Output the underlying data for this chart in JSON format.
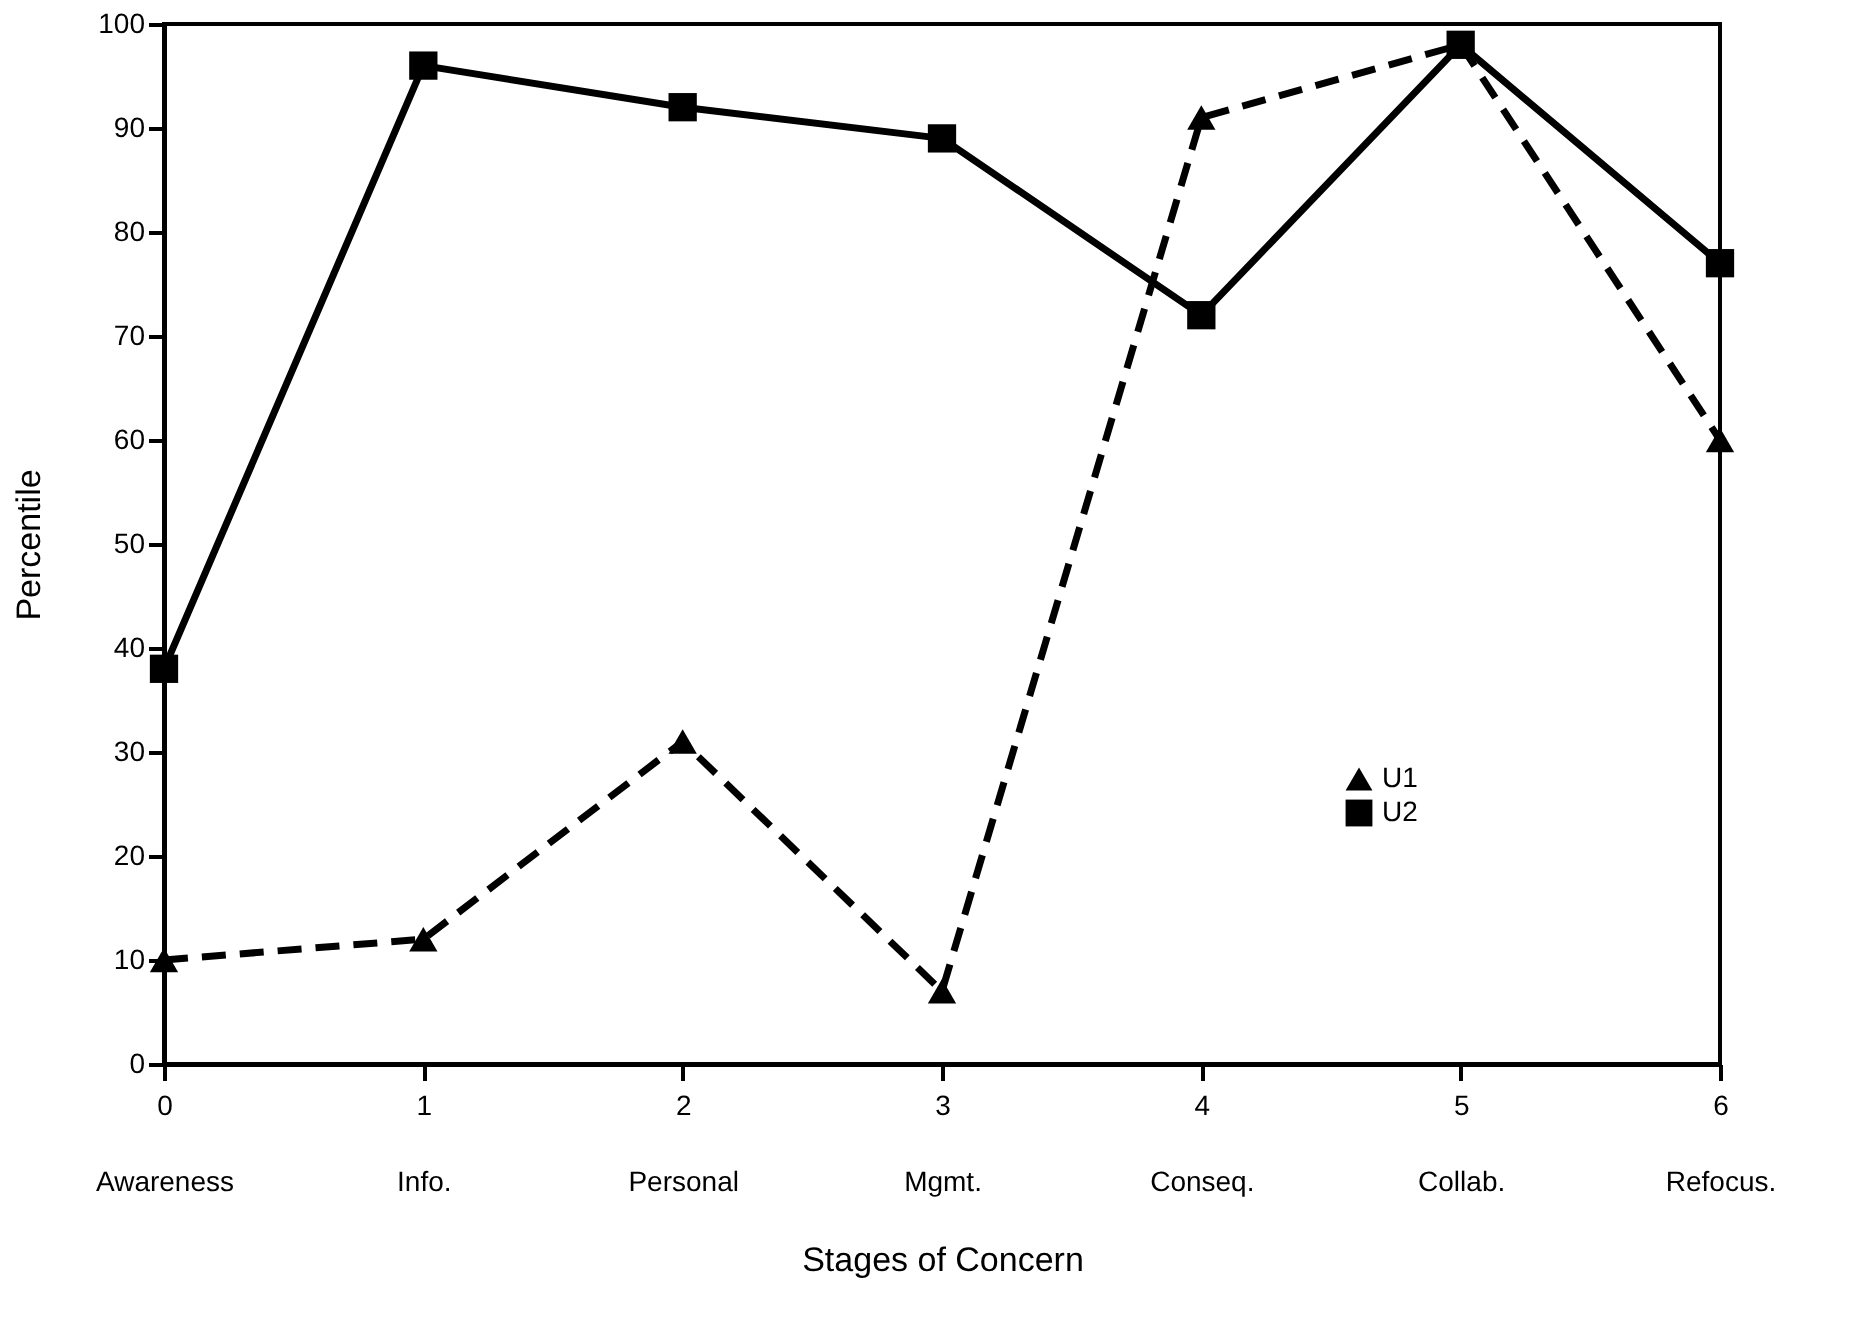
{
  "chart_data": {
    "type": "line",
    "xlabel": "Stages of Concern",
    "ylabel": "Percentile",
    "categories": [
      "0\nAwareness",
      "1\nInfo.",
      "2\nPersonal",
      "3\nMgmt.",
      "4\nConseq.",
      "5\nCollab.",
      "6\nRefocus."
    ],
    "ylim": [
      0,
      100
    ],
    "yticks": [
      0,
      10,
      20,
      30,
      40,
      50,
      60,
      70,
      80,
      90,
      100
    ],
    "grid": false,
    "legend": "right",
    "series": [
      {
        "name": "U1",
        "color": "#000000",
        "marker": "triangle",
        "line_style": "dashed",
        "values": [
          10,
          12,
          31,
          7,
          91,
          98,
          60
        ]
      },
      {
        "name": "U2",
        "color": "#000000",
        "marker": "square",
        "line_style": "solid",
        "values": [
          38,
          96,
          92,
          89,
          72,
          98,
          77
        ]
      }
    ]
  }
}
